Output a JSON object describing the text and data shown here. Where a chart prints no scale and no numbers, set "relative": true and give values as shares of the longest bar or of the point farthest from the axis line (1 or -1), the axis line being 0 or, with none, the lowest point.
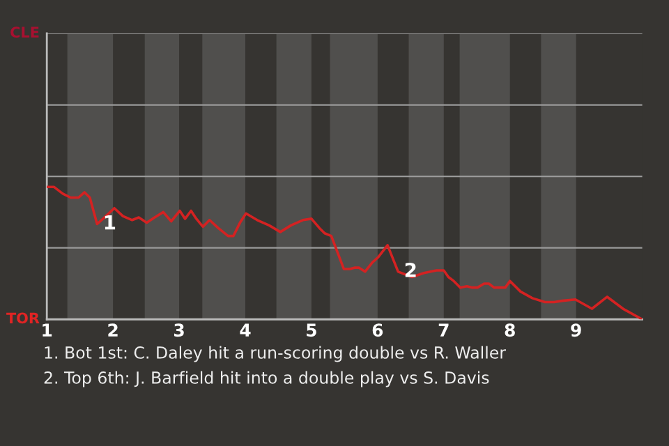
{
  "chart_data": {
    "type": "line",
    "relative": true,
    "x": [
      1,
      1.11,
      1.24,
      1.36,
      1.48,
      1.57,
      1.65,
      1.76,
      1.85,
      2.02,
      2.15,
      2.29,
      2.39,
      2.51,
      2.63,
      2.76,
      2.88,
      3.01,
      3.09,
      3.18,
      3.26,
      3.36,
      3.46,
      3.59,
      3.74,
      3.82,
      3.92,
      4.01,
      4.18,
      4.36,
      4.53,
      4.69,
      4.87,
      5,
      5.12,
      5.2,
      5.3,
      5.49,
      5.58,
      5.65,
      5.72,
      5.81,
      5.92,
      6.01,
      6.15,
      6.31,
      6.52,
      6.7,
      6.89,
      7,
      7.07,
      7.15,
      7.25,
      7.35,
      7.43,
      7.51,
      7.61,
      7.68,
      7.76,
      7.93,
      8,
      8.16,
      8.34,
      8.53,
      8.67,
      8.79,
      8.99,
      9.24,
      9.47,
      9.71,
      10
    ],
    "series": [
      {
        "color": "#d42222",
        "values": [
          1,
          1,
          0.95,
          0.92,
          0.92,
          0.96,
          0.92,
          0.72,
          0.76,
          0.84,
          0.78,
          0.75,
          0.77,
          0.73,
          0.77,
          0.81,
          0.74,
          0.82,
          0.76,
          0.82,
          0.76,
          0.7,
          0.75,
          0.69,
          0.63,
          0.63,
          0.73,
          0.8,
          0.75,
          0.71,
          0.66,
          0.71,
          0.75,
          0.76,
          0.69,
          0.65,
          0.63,
          0.38,
          0.38,
          0.39,
          0.39,
          0.36,
          0.43,
          0.47,
          0.56,
          0.36,
          0.32,
          0.35,
          0.37,
          0.37,
          0.32,
          0.29,
          0.24,
          0.25,
          0.24,
          0.24,
          0.27,
          0.27,
          0.24,
          0.24,
          0.29,
          0.21,
          0.16,
          0.13,
          0.13,
          0.14,
          0.15,
          0.08,
          0.17,
          0.08,
          0
        ]
      }
    ],
    "xlim": [
      1,
      10
    ],
    "xticks": [
      1,
      2,
      3,
      4,
      5,
      6,
      7,
      8,
      9
    ],
    "ref_lines": [
      {
        "axis": "y",
        "value": 0.54,
        "color": "#9a9a9a"
      },
      {
        "axis": "y",
        "value": 1.08,
        "color": "#9a9a9a"
      },
      {
        "axis": "y",
        "value": 1.62,
        "color": "#9a9a9a"
      },
      {
        "axis": "y",
        "value": 2.16,
        "color": "#9a9a9a"
      }
    ],
    "bands": [
      {
        "axis": "x",
        "from": 1.31,
        "to": 2,
        "color": "#504f4d"
      },
      {
        "axis": "x",
        "from": 2.48,
        "to": 3,
        "color": "#504f4d"
      },
      {
        "axis": "x",
        "from": 3.35,
        "to": 4,
        "color": "#504f4d"
      },
      {
        "axis": "x",
        "from": 4.47,
        "to": 5,
        "color": "#504f4d"
      },
      {
        "axis": "x",
        "from": 5.28,
        "to": 6,
        "color": "#504f4d"
      },
      {
        "axis": "x",
        "from": 6.47,
        "to": 7,
        "color": "#504f4d"
      },
      {
        "axis": "x",
        "from": 7.24,
        "to": 8,
        "color": "#504f4d"
      },
      {
        "axis": "x",
        "from": 8.47,
        "to": 9,
        "color": "#504f4d"
      }
    ],
    "annotations": [
      "CLE",
      "TOR",
      {
        "text": "1",
        "x": 1.76,
        "y": 0.72
      },
      {
        "text": "2",
        "x": 6.31,
        "y": 0.36
      },
      "1. Bot 1st: C. Daley hit a run-scoring double vs R. Waller",
      "2. Top 6th: J. Barfield hit into a double play vs S. Davis"
    ]
  }
}
